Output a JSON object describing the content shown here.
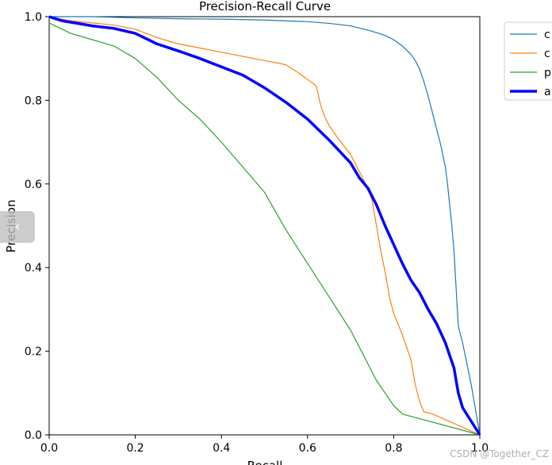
{
  "chart_data": {
    "type": "line",
    "title": "Precision-Recall Curve",
    "xlabel": "Recall",
    "ylabel": "Precision",
    "xlim": [
      0.0,
      1.0
    ],
    "ylim": [
      0.0,
      1.0
    ],
    "xticks": [
      "0.0",
      "0.2",
      "0.4",
      "0.6",
      "0.8",
      "1.0"
    ],
    "yticks": [
      "0.0",
      "0.2",
      "0.4",
      "0.6",
      "0.8",
      "1.0"
    ],
    "grid": false,
    "legend_position": "outside-top-right",
    "series": [
      {
        "name": "c",
        "color": "#1f77b4",
        "width": 1.2,
        "x": [
          0.0,
          0.05,
          0.1,
          0.2,
          0.3,
          0.4,
          0.5,
          0.6,
          0.65,
          0.7,
          0.75,
          0.78,
          0.8,
          0.82,
          0.84,
          0.85,
          0.86,
          0.87,
          0.88,
          0.89,
          0.9,
          0.91,
          0.92,
          0.925,
          0.93,
          0.935,
          0.94,
          0.945,
          0.95,
          0.96,
          0.97,
          0.98,
          0.99,
          1.0
        ],
        "y": [
          1.0,
          1.0,
          1.0,
          0.997,
          0.995,
          0.994,
          0.992,
          0.988,
          0.984,
          0.978,
          0.965,
          0.955,
          0.945,
          0.93,
          0.91,
          0.895,
          0.875,
          0.845,
          0.81,
          0.77,
          0.73,
          0.69,
          0.64,
          0.6,
          0.55,
          0.5,
          0.44,
          0.35,
          0.26,
          0.22,
          0.17,
          0.12,
          0.06,
          0.0
        ]
      },
      {
        "name": "c",
        "color": "#ff7f0e",
        "width": 1.2,
        "x": [
          0.0,
          0.05,
          0.1,
          0.15,
          0.2,
          0.25,
          0.3,
          0.35,
          0.4,
          0.45,
          0.5,
          0.55,
          0.58,
          0.6,
          0.62,
          0.63,
          0.64,
          0.65,
          0.67,
          0.7,
          0.72,
          0.74,
          0.75,
          0.76,
          0.77,
          0.78,
          0.79,
          0.8,
          0.82,
          0.84,
          0.85,
          0.86,
          0.87,
          0.89,
          1.0
        ],
        "y": [
          1.0,
          0.99,
          0.985,
          0.98,
          0.97,
          0.95,
          0.935,
          0.925,
          0.915,
          0.905,
          0.895,
          0.885,
          0.865,
          0.85,
          0.835,
          0.79,
          0.76,
          0.74,
          0.71,
          0.67,
          0.63,
          0.59,
          0.56,
          0.5,
          0.44,
          0.39,
          0.33,
          0.29,
          0.24,
          0.18,
          0.12,
          0.08,
          0.055,
          0.05,
          0.0
        ]
      },
      {
        "name": "p",
        "color": "#2ca02c",
        "width": 1.2,
        "x": [
          0.0,
          0.02,
          0.05,
          0.1,
          0.15,
          0.2,
          0.25,
          0.3,
          0.35,
          0.4,
          0.45,
          0.5,
          0.55,
          0.6,
          0.65,
          0.7,
          0.72,
          0.74,
          0.76,
          0.78,
          0.8,
          0.82,
          0.83,
          1.0
        ],
        "y": [
          0.985,
          0.975,
          0.96,
          0.945,
          0.93,
          0.9,
          0.855,
          0.8,
          0.755,
          0.7,
          0.64,
          0.58,
          0.49,
          0.41,
          0.33,
          0.25,
          0.21,
          0.17,
          0.13,
          0.1,
          0.07,
          0.05,
          0.047,
          0.0
        ]
      },
      {
        "name": "a",
        "color": "#0000ff",
        "width": 3.5,
        "x": [
          0.0,
          0.03,
          0.06,
          0.1,
          0.15,
          0.2,
          0.25,
          0.3,
          0.35,
          0.4,
          0.45,
          0.5,
          0.55,
          0.6,
          0.65,
          0.7,
          0.72,
          0.74,
          0.76,
          0.78,
          0.8,
          0.82,
          0.84,
          0.86,
          0.88,
          0.9,
          0.92,
          0.94,
          0.95,
          0.96,
          1.0
        ],
        "y": [
          1.0,
          0.99,
          0.985,
          0.978,
          0.972,
          0.96,
          0.935,
          0.918,
          0.9,
          0.88,
          0.86,
          0.83,
          0.795,
          0.755,
          0.705,
          0.65,
          0.615,
          0.59,
          0.55,
          0.5,
          0.455,
          0.41,
          0.37,
          0.34,
          0.3,
          0.265,
          0.22,
          0.16,
          0.1,
          0.065,
          0.0
        ]
      }
    ]
  },
  "overlay": {
    "chevron": "‹"
  },
  "watermark": "CSDN @Together_CZ"
}
